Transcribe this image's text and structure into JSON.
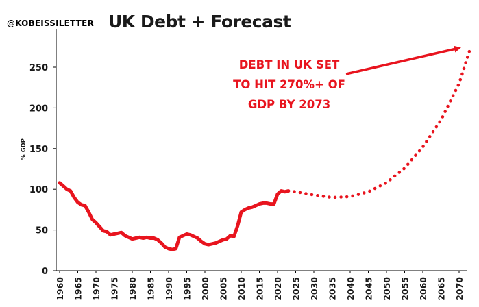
{
  "header": {
    "handle": "@KOBEISSILETTER",
    "title": "UK Debt + Forecast"
  },
  "annotation": {
    "lines": [
      "DEBT IN UK SET",
      "TO HIT 270%+ OF",
      "GDP BY 2073"
    ]
  },
  "colors": {
    "series": "#e8141e",
    "axis": "#000000",
    "text": "#1a1a1a"
  },
  "chart_data": {
    "type": "line",
    "title": "UK Debt + Forecast",
    "xlabel": "",
    "ylabel": "% GDP",
    "xlim": [
      1960,
      2073
    ],
    "ylim": [
      0,
      280
    ],
    "yticks": [
      0,
      50,
      100,
      150,
      200,
      250
    ],
    "xticks": [
      1960,
      1965,
      1970,
      1975,
      1980,
      1985,
      1990,
      1995,
      2000,
      2005,
      2010,
      2015,
      2020,
      2025,
      2030,
      2035,
      2040,
      2045,
      2050,
      2055,
      2060,
      2065,
      2070
    ],
    "grid": false,
    "legend": "none",
    "series": [
      {
        "style": "solid",
        "x": [
          1960,
          1961,
          1962,
          1963,
          1964,
          1965,
          1966,
          1967,
          1968,
          1969,
          1970,
          1971,
          1972,
          1973,
          1974,
          1975,
          1976,
          1977,
          1978,
          1979,
          1980,
          1981,
          1982,
          1983,
          1984,
          1985,
          1986,
          1987,
          1988,
          1989,
          1990,
          1991,
          1992,
          1993,
          1994,
          1995,
          1996,
          1997,
          1998,
          1999,
          2000,
          2001,
          2002,
          2003,
          2004,
          2005,
          2006,
          2007,
          2008,
          2009,
          2010,
          2011,
          2012,
          2013,
          2014,
          2015,
          2016,
          2017,
          2018,
          2019,
          2020,
          2021,
          2022,
          2023
        ],
        "y": [
          108,
          104,
          100,
          98,
          90,
          84,
          81,
          80,
          72,
          63,
          59,
          54,
          49,
          48,
          44,
          45,
          46,
          47,
          43,
          41,
          39,
          40,
          41,
          40,
          41,
          40,
          40,
          38,
          34,
          29,
          27,
          26,
          27,
          41,
          43,
          45,
          44,
          42,
          40,
          36,
          33,
          32,
          33,
          34,
          36,
          38,
          39,
          43,
          42,
          55,
          72,
          75,
          77,
          78,
          80,
          82,
          83,
          83,
          82,
          82,
          94,
          98,
          97,
          98
        ]
      },
      {
        "style": "dotted",
        "x": [
          2023,
          2025,
          2030,
          2035,
          2040,
          2045,
          2050,
          2055,
          2060,
          2065,
          2070,
          2073
        ],
        "y": [
          98,
          97,
          93,
          90,
          91,
          97,
          108,
          126,
          152,
          185,
          230,
          272
        ]
      }
    ]
  }
}
